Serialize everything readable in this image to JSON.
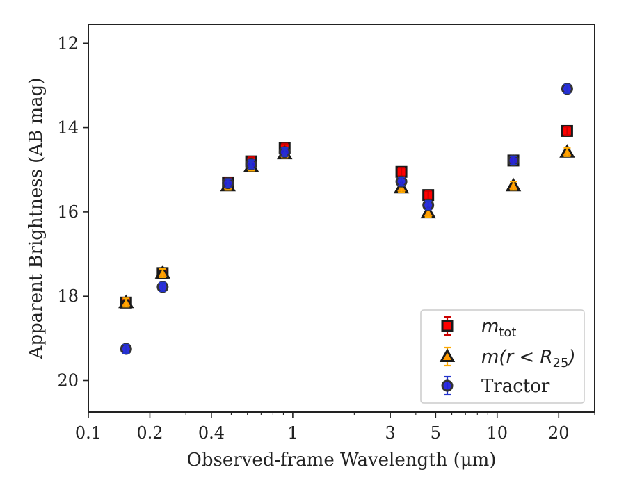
{
  "chart_data": {
    "type": "scatter",
    "xlabel": "Observed-frame Wavelength (μm)",
    "ylabel": "Apparent Brightness (AB mag)",
    "x_scale": "log",
    "xlim": [
      0.1,
      30
    ],
    "ylim": [
      20.75,
      11.55
    ],
    "y_inverted": true,
    "x_ticks": [
      0.1,
      0.2,
      0.4,
      1,
      3,
      5,
      10,
      20
    ],
    "x_tick_labels": [
      "0.1",
      "0.2",
      "0.4",
      "1",
      "3",
      "5",
      "10",
      "20"
    ],
    "y_ticks": [
      12,
      14,
      16,
      18,
      20
    ],
    "y_tick_labels": [
      "12",
      "14",
      "16",
      "18",
      "20"
    ],
    "grid": false,
    "legend_position": "lower-right",
    "series": [
      {
        "name": "m_tot",
        "legend_main": "m",
        "legend_sub": "tot",
        "marker": "square",
        "color": "#ff0000",
        "edge_color": "#1a1a1a",
        "error_color": "#cc0000",
        "points": [
          {
            "x": 0.153,
            "y": 18.15,
            "err": 0.05
          },
          {
            "x": 0.231,
            "y": 17.45,
            "err": 0.04
          },
          {
            "x": 0.482,
            "y": 15.3,
            "err": 0.03
          },
          {
            "x": 0.626,
            "y": 14.8,
            "err": 0.03
          },
          {
            "x": 0.913,
            "y": 14.48,
            "err": 0.03
          },
          {
            "x": 3.4,
            "y": 15.05,
            "err": 0.03
          },
          {
            "x": 4.6,
            "y": 15.6,
            "err": 0.03
          },
          {
            "x": 12.0,
            "y": 14.78,
            "err": 0.03
          },
          {
            "x": 22.0,
            "y": 14.08,
            "err": 0.03
          }
        ]
      },
      {
        "name": "m(r < R25)",
        "legend_main": "m(r < R",
        "legend_sub": "25",
        "legend_tail": ")",
        "marker": "triangle",
        "color": "#ff9900",
        "edge_color": "#1a1a1a",
        "error_color": "#ffaa00",
        "points": [
          {
            "x": 0.153,
            "y": 18.15,
            "err": 0.05
          },
          {
            "x": 0.231,
            "y": 17.45,
            "err": 0.04
          },
          {
            "x": 0.482,
            "y": 15.38,
            "err": 0.03
          },
          {
            "x": 0.626,
            "y": 14.92,
            "err": 0.03
          },
          {
            "x": 0.913,
            "y": 14.62,
            "err": 0.03
          },
          {
            "x": 3.4,
            "y": 15.43,
            "err": 0.03
          },
          {
            "x": 4.6,
            "y": 16.02,
            "err": 0.03
          },
          {
            "x": 12.0,
            "y": 15.38,
            "err": 0.03
          },
          {
            "x": 22.0,
            "y": 14.58,
            "err": 0.08
          }
        ]
      },
      {
        "name": "Tractor",
        "legend_main": "Tractor",
        "marker": "circle",
        "color": "#2222dd",
        "edge_color": "#333333",
        "error_color": "#2233cc",
        "points": [
          {
            "x": 0.153,
            "y": 19.25,
            "err": 0.04
          },
          {
            "x": 0.231,
            "y": 17.78,
            "err": 0.04
          },
          {
            "x": 0.482,
            "y": 15.32,
            "err": 0.03
          },
          {
            "x": 0.626,
            "y": 14.87,
            "err": 0.03
          },
          {
            "x": 0.913,
            "y": 14.58,
            "err": 0.03
          },
          {
            "x": 3.4,
            "y": 15.28,
            "err": 0.03
          },
          {
            "x": 4.6,
            "y": 15.84,
            "err": 0.03
          },
          {
            "x": 12.0,
            "y": 14.78,
            "err": 0.03
          },
          {
            "x": 22.0,
            "y": 13.08,
            "err": 0.07
          }
        ]
      }
    ]
  }
}
